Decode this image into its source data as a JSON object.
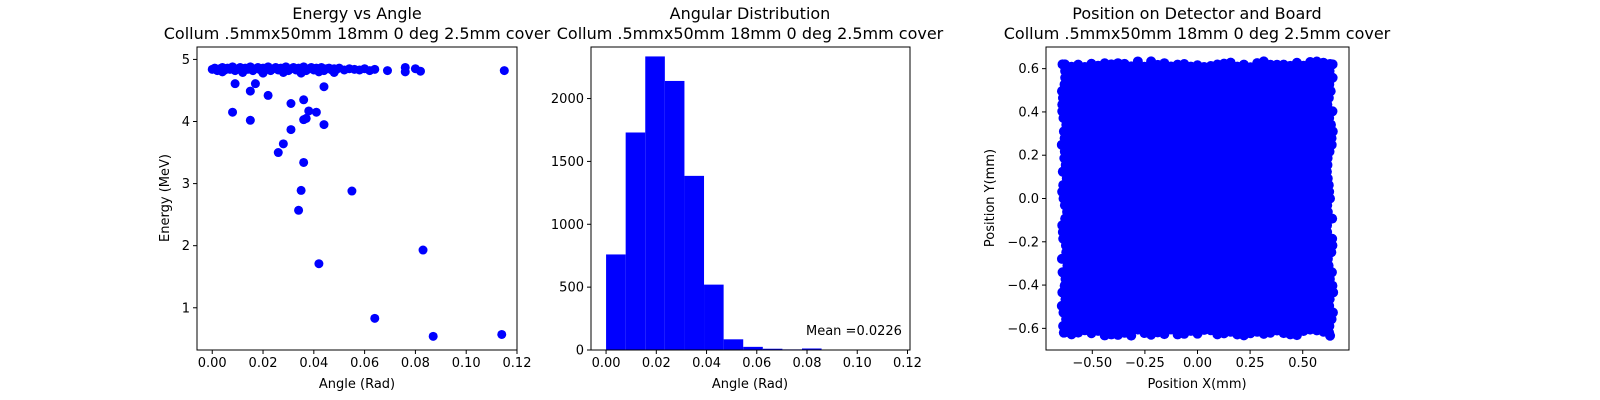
{
  "chart_data": [
    {
      "type": "scatter",
      "title_line1": "Energy vs Angle",
      "title_line2": "Collum .5mmx50mm 18mm 0 deg 2.5mm cover",
      "xlabel": "Angle (Rad)",
      "ylabel": "Energy (MeV)",
      "xlim": [
        -0.006,
        0.12
      ],
      "ylim": [
        0.32,
        5.2
      ],
      "xticks": [
        "0.00",
        "0.02",
        "0.04",
        "0.06",
        "0.08",
        "0.10",
        "0.12"
      ],
      "yticks": [
        "1",
        "2",
        "3",
        "4",
        "5"
      ],
      "color": "#0000ff",
      "points": [
        [
          0.0,
          4.84
        ],
        [
          0.001,
          4.86
        ],
        [
          0.002,
          4.82
        ],
        [
          0.003,
          4.85
        ],
        [
          0.004,
          4.87
        ],
        [
          0.005,
          4.83
        ],
        [
          0.006,
          4.86
        ],
        [
          0.007,
          4.84
        ],
        [
          0.008,
          4.88
        ],
        [
          0.009,
          4.82
        ],
        [
          0.01,
          4.85
        ],
        [
          0.011,
          4.87
        ],
        [
          0.012,
          4.83
        ],
        [
          0.013,
          4.86
        ],
        [
          0.014,
          4.84
        ],
        [
          0.015,
          4.88
        ],
        [
          0.016,
          4.82
        ],
        [
          0.017,
          4.85
        ],
        [
          0.018,
          4.87
        ],
        [
          0.019,
          4.83
        ],
        [
          0.02,
          4.86
        ],
        [
          0.021,
          4.84
        ],
        [
          0.022,
          4.88
        ],
        [
          0.023,
          4.82
        ],
        [
          0.024,
          4.85
        ],
        [
          0.025,
          4.87
        ],
        [
          0.026,
          4.83
        ],
        [
          0.027,
          4.86
        ],
        [
          0.028,
          4.84
        ],
        [
          0.029,
          4.88
        ],
        [
          0.03,
          4.82
        ],
        [
          0.031,
          4.85
        ],
        [
          0.032,
          4.87
        ],
        [
          0.033,
          4.83
        ],
        [
          0.034,
          4.86
        ],
        [
          0.035,
          4.84
        ],
        [
          0.036,
          4.88
        ],
        [
          0.037,
          4.82
        ],
        [
          0.038,
          4.85
        ],
        [
          0.039,
          4.87
        ],
        [
          0.04,
          4.83
        ],
        [
          0.041,
          4.86
        ],
        [
          0.042,
          4.84
        ],
        [
          0.043,
          4.87
        ],
        [
          0.044,
          4.82
        ],
        [
          0.045,
          4.85
        ],
        [
          0.046,
          4.86
        ],
        [
          0.047,
          4.83
        ],
        [
          0.048,
          4.85
        ],
        [
          0.049,
          4.84
        ],
        [
          0.05,
          4.86
        ],
        [
          0.052,
          4.83
        ],
        [
          0.054,
          4.85
        ],
        [
          0.056,
          4.84
        ],
        [
          0.058,
          4.83
        ],
        [
          0.06,
          4.85
        ],
        [
          0.062,
          4.82
        ],
        [
          0.064,
          4.84
        ],
        [
          0.004,
          4.8
        ],
        [
          0.012,
          4.79
        ],
        [
          0.02,
          4.78
        ],
        [
          0.028,
          4.79
        ],
        [
          0.035,
          4.78
        ],
        [
          0.042,
          4.8
        ],
        [
          0.048,
          4.79
        ],
        [
          0.069,
          4.82
        ],
        [
          0.076,
          4.87
        ],
        [
          0.076,
          4.8
        ],
        [
          0.08,
          4.85
        ],
        [
          0.082,
          4.81
        ],
        [
          0.115,
          4.82
        ],
        [
          0.044,
          4.56
        ],
        [
          0.009,
          4.61
        ],
        [
          0.017,
          4.61
        ],
        [
          0.015,
          4.49
        ],
        [
          0.022,
          4.42
        ],
        [
          0.036,
          4.35
        ],
        [
          0.031,
          4.29
        ],
        [
          0.008,
          4.15
        ],
        [
          0.038,
          4.17
        ],
        [
          0.041,
          4.15
        ],
        [
          0.015,
          4.02
        ],
        [
          0.036,
          4.03
        ],
        [
          0.037,
          4.05
        ],
        [
          0.044,
          3.95
        ],
        [
          0.031,
          3.87
        ],
        [
          0.028,
          3.64
        ],
        [
          0.026,
          3.5
        ],
        [
          0.036,
          3.34
        ],
        [
          0.035,
          2.89
        ],
        [
          0.055,
          2.88
        ],
        [
          0.034,
          2.57
        ],
        [
          0.083,
          1.93
        ],
        [
          0.042,
          1.71
        ],
        [
          0.064,
          0.83
        ],
        [
          0.087,
          0.54
        ],
        [
          0.114,
          0.57
        ]
      ]
    },
    {
      "type": "bar",
      "title_line1": "Angular Distribution",
      "title_line2": "Collum .5mmx50mm 18mm 0 deg 2.5mm cover",
      "xlabel": "Angle (Rad)",
      "ylabel": "",
      "xlim": [
        -0.006,
        0.121
      ],
      "ylim": [
        0,
        2410
      ],
      "xticks": [
        "0.00",
        "0.02",
        "0.04",
        "0.06",
        "0.08",
        "0.10",
        "0.12"
      ],
      "yticks": [
        "0",
        "500",
        "1000",
        "1500",
        "2000"
      ],
      "color": "#0000ff",
      "bin_edges": [
        0.0,
        0.0078,
        0.0156,
        0.0234,
        0.0312,
        0.039,
        0.0468,
        0.0546,
        0.0624,
        0.0702,
        0.078,
        0.0858,
        0.0936,
        0.1014,
        0.1092,
        0.117
      ],
      "values": [
        760,
        1730,
        2335,
        2140,
        1385,
        520,
        85,
        25,
        10,
        5,
        12,
        2,
        0,
        0,
        3
      ],
      "annotation": "Mean =0.0226"
    },
    {
      "type": "scatter",
      "title_line1": "Position on Detector and Board",
      "title_line2": "Collum .5mmx50mm 18mm 0 deg 2.5mm cover",
      "xlabel": "Position X(mm)",
      "ylabel": "Position Y(mm)",
      "xlim": [
        -0.72,
        0.72
      ],
      "ylim": [
        -0.7,
        0.7
      ],
      "xticks": [
        "−0.50",
        "−0.25",
        "0.00",
        "0.25",
        "0.50"
      ],
      "xtick_values": [
        -0.5,
        -0.25,
        0,
        0.25,
        0.5
      ],
      "yticks": [
        "−0.6",
        "−0.4",
        "−0.2",
        "0.0",
        "0.2",
        "0.4",
        "0.6"
      ],
      "ytick_values": [
        -0.6,
        -0.4,
        -0.2,
        0,
        0.2,
        0.4,
        0.6
      ],
      "color": "#0000ff",
      "fill_region": {
        "x": [
          -0.63,
          0.63
        ],
        "y": [
          -0.62,
          0.62
        ]
      }
    }
  ]
}
